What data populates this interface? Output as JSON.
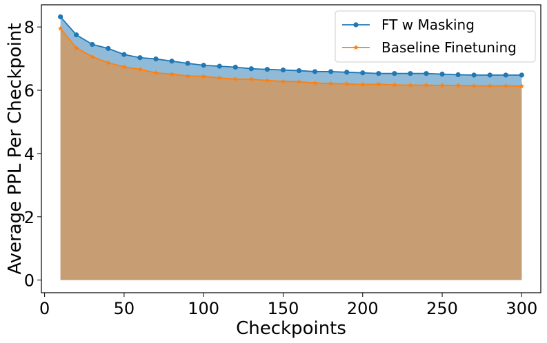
{
  "chart_data": {
    "type": "area",
    "title": "",
    "xlabel": "Checkpoints",
    "ylabel": "Average PPL Per Checkpoint",
    "xlim": [
      -2,
      312
    ],
    "ylim": [
      -0.4,
      8.7
    ],
    "xticks": [
      "0",
      "50",
      "100",
      "150",
      "200",
      "250",
      "300"
    ],
    "yticks": [
      "0",
      "2",
      "4",
      "6",
      "8"
    ],
    "grid": false,
    "legend_position": "top-right",
    "fill_baseline": 0,
    "x": [
      10,
      20,
      30,
      40,
      50,
      60,
      70,
      80,
      90,
      100,
      110,
      120,
      130,
      140,
      150,
      160,
      170,
      180,
      190,
      200,
      210,
      220,
      230,
      240,
      250,
      260,
      270,
      280,
      290,
      300
    ],
    "series": [
      {
        "name": "FT w Masking",
        "color": "#1f77b4",
        "fill_color": "#1f77b4",
        "marker": "circle",
        "values": [
          8.32,
          7.75,
          7.45,
          7.32,
          7.13,
          7.03,
          6.99,
          6.92,
          6.85,
          6.79,
          6.76,
          6.73,
          6.68,
          6.66,
          6.64,
          6.62,
          6.59,
          6.59,
          6.57,
          6.55,
          6.53,
          6.53,
          6.53,
          6.53,
          6.51,
          6.49,
          6.48,
          6.48,
          6.48,
          6.48
        ]
      },
      {
        "name": "Baseline Finetuning",
        "color": "#ff7f0e",
        "fill_color": "#ff7f0e",
        "marker": "star",
        "values": [
          7.95,
          7.34,
          7.06,
          6.87,
          6.74,
          6.66,
          6.55,
          6.51,
          6.45,
          6.44,
          6.39,
          6.35,
          6.35,
          6.31,
          6.28,
          6.27,
          6.23,
          6.21,
          6.2,
          6.18,
          6.19,
          6.17,
          6.16,
          6.16,
          6.15,
          6.15,
          6.14,
          6.14,
          6.14,
          6.13
        ]
      }
    ]
  }
}
